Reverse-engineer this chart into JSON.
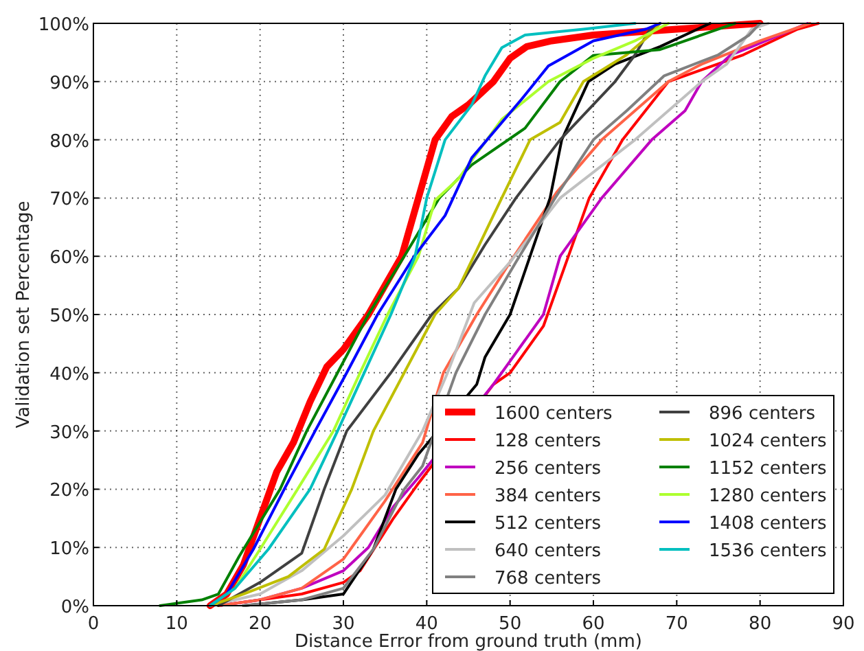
{
  "chart_data": {
    "type": "line",
    "xlabel": "Distance Error from ground truth (mm)",
    "ylabel": "Validation set Percentage",
    "xlim": [
      0,
      90
    ],
    "xticks": [
      0,
      10,
      20,
      30,
      40,
      50,
      60,
      70,
      80,
      90
    ],
    "ylim": [
      0,
      100
    ],
    "yticks": [
      {
        "value": 0,
        "label": "0%"
      },
      {
        "value": 10,
        "label": "10%"
      },
      {
        "value": 20,
        "label": "20%"
      },
      {
        "value": 30,
        "label": "30%"
      },
      {
        "value": 40,
        "label": "40%"
      },
      {
        "value": 50,
        "label": "50%"
      },
      {
        "value": 60,
        "label": "60%"
      },
      {
        "value": 70,
        "label": "70%"
      },
      {
        "value": 80,
        "label": "80%"
      },
      {
        "value": 90,
        "label": "90%"
      },
      {
        "value": 100,
        "label": "100%"
      }
    ],
    "grid": true,
    "legend": "bottom right",
    "marker": "none",
    "line_style": "solid",
    "series": [
      {
        "name": "1600 centers",
        "color": "#ff0000",
        "x": [
          14,
          16,
          18,
          20,
          22,
          24,
          26,
          28,
          30,
          33,
          35,
          37,
          39,
          41,
          43,
          45,
          48,
          50,
          52,
          55,
          60,
          70,
          80
        ],
        "values": [
          0,
          2,
          7,
          15,
          23,
          28,
          35,
          41,
          44,
          50,
          55,
          60,
          70,
          80,
          84,
          86,
          90,
          94,
          96,
          97,
          98,
          99,
          100
        ]
      },
      {
        "name": "128 centers",
        "color": "#ff0000",
        "x": [
          15,
          20,
          25,
          30,
          32,
          36,
          39,
          48,
          50,
          54,
          57,
          59.5,
          63.5,
          69,
          78,
          84.5,
          87
        ],
        "values": [
          0,
          1,
          2,
          4,
          6,
          15,
          21,
          38,
          40,
          48,
          60,
          70,
          80,
          90,
          94.6,
          99,
          100
        ]
      },
      {
        "name": "256 centers",
        "color": "#bf00bf",
        "x": [
          15,
          20,
          25,
          30,
          33,
          36,
          39,
          48,
          50,
          54,
          56,
          61,
          67,
          71,
          73,
          76.5,
          79,
          85.7
        ],
        "values": [
          0,
          1,
          3,
          6,
          10,
          17,
          22,
          38,
          42,
          50,
          60,
          70,
          80,
          85,
          90,
          94.6,
          96,
          100
        ]
      },
      {
        "name": "384 centers",
        "color": "#ff6347",
        "x": [
          15,
          20,
          25,
          30,
          35,
          39.5,
          42,
          46,
          50,
          55.6,
          61,
          69,
          73,
          80,
          86
        ],
        "values": [
          0,
          1,
          3,
          8,
          18,
          28,
          40,
          50,
          59,
          71,
          80,
          90,
          93,
          97,
          100
        ]
      },
      {
        "name": "512 centers",
        "color": "#000000",
        "x": [
          18,
          25,
          30,
          33.6,
          36.3,
          39,
          46,
          47,
          50,
          52.4,
          54.8,
          56.2,
          59.4,
          62.6,
          68,
          74
        ],
        "values": [
          0,
          1,
          2,
          9.7,
          20,
          26,
          38,
          42.7,
          50,
          60,
          70,
          80,
          90,
          93,
          96,
          100
        ]
      },
      {
        "name": "640 centers",
        "color": "#c0c0c0",
        "x": [
          14,
          20,
          25,
          30,
          35,
          39.5,
          42.5,
          45.7,
          50,
          56,
          65,
          73,
          76,
          79,
          81
        ],
        "values": [
          0,
          2,
          6,
          12,
          19,
          30,
          40,
          52,
          59,
          70,
          80,
          90,
          93,
          99,
          100
        ]
      },
      {
        "name": "768 centers",
        "color": "#808080",
        "x": [
          18,
          25,
          30,
          33.6,
          37.3,
          39.5,
          43.5,
          47,
          50.7,
          55.4,
          60,
          64,
          68.5,
          75,
          78.7,
          80
        ],
        "values": [
          0,
          1,
          3,
          9.7,
          20,
          24,
          40,
          50,
          59,
          70,
          80,
          85,
          91,
          94.6,
          98,
          100
        ]
      },
      {
        "name": "896 centers",
        "color": "#404040",
        "x": [
          15,
          20,
          25,
          27.7,
          30.4,
          35.7,
          40.6,
          43.8,
          47,
          50.7,
          56,
          62.6,
          65,
          66.8,
          68
        ],
        "values": [
          0,
          4,
          9,
          20,
          30,
          40,
          50,
          54.5,
          62,
          70,
          80,
          90,
          94.6,
          99,
          100
        ]
      },
      {
        "name": "1024 centers",
        "color": "#bfbf00",
        "x": [
          14,
          18,
          23.4,
          27.7,
          31,
          33.6,
          37.3,
          41,
          43.8,
          49,
          52.4,
          56,
          58.8,
          64,
          66.8,
          68
        ],
        "values": [
          0,
          2,
          5,
          9.7,
          20,
          30,
          40,
          50,
          54.5,
          70,
          80,
          83,
          90,
          94.6,
          98,
          100
        ]
      },
      {
        "name": "1152 centers",
        "color": "#008000",
        "x": [
          8,
          13,
          15,
          17.5,
          22.4,
          25.6,
          29.3,
          33,
          37.3,
          41.5,
          45.4,
          51.8,
          56,
          60,
          68,
          75,
          77
        ],
        "values": [
          0,
          1,
          2,
          8.5,
          20,
          30,
          40,
          50,
          60,
          70,
          75.7,
          82,
          90,
          94.5,
          95.5,
          99,
          100
        ]
      },
      {
        "name": "1280 centers",
        "color": "#adff2f",
        "x": [
          14,
          17,
          20,
          24.5,
          28.8,
          32,
          35.3,
          39,
          41,
          43.8,
          49,
          54.6,
          60,
          65,
          69
        ],
        "values": [
          0,
          3,
          9.7,
          20,
          30,
          40,
          50,
          60,
          69.6,
          73.3,
          83.5,
          90,
          94,
          97,
          100
        ]
      },
      {
        "name": "1408 centers",
        "color": "#0000ff",
        "x": [
          14,
          16,
          19.2,
          22.9,
          26.6,
          30.4,
          34.1,
          38.5,
          42.2,
          45.4,
          51.4,
          54.6,
          60,
          66.3,
          68
        ],
        "values": [
          0,
          2,
          9.7,
          20,
          30,
          40,
          50,
          60,
          67,
          76.9,
          87,
          92.7,
          97,
          99,
          100
        ]
      },
      {
        "name": "1536 centers",
        "color": "#00bfbf",
        "x": [
          14,
          17,
          21,
          26,
          29.3,
          32.5,
          35.7,
          38.6,
          40,
          42.2,
          45.4,
          47,
          49,
          51.8,
          58.8,
          65
        ],
        "values": [
          0,
          3,
          9.7,
          20,
          30,
          40,
          50,
          60,
          70,
          80,
          86,
          91,
          95.8,
          98,
          99,
          100
        ]
      }
    ]
  }
}
